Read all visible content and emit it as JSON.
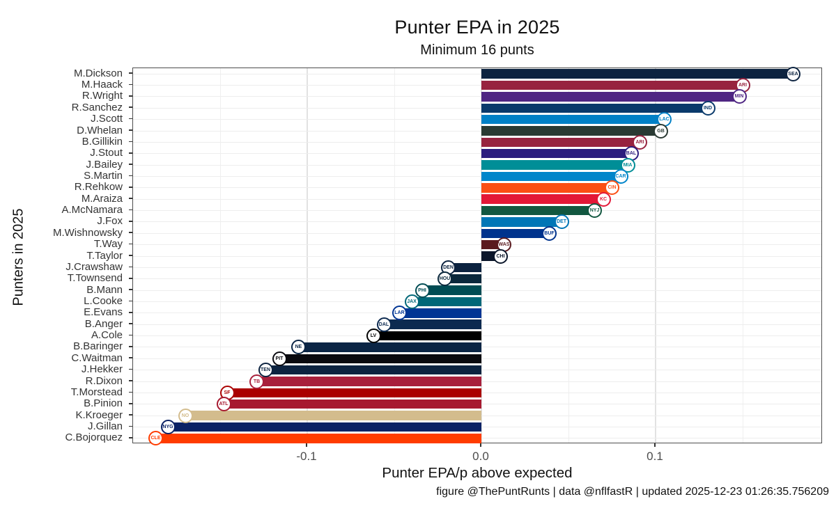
{
  "figure": {
    "title": "Punter EPA in 2025",
    "subtitle": "Minimum 16 punts",
    "xlabel": "Punter EPA/p above expected",
    "ylabel": "Punters in 2025",
    "caption": "figure @ThePuntRunts | data @nflfastR | updated 2025-12-23 01:26:35.756209"
  },
  "chart_data": {
    "type": "bar",
    "orientation": "horizontal",
    "title": "Punter EPA in 2025",
    "subtitle": "Minimum 16 punts",
    "xlabel": "Punter EPA/p above expected",
    "ylabel": "Punters in 2025",
    "xlim": [
      -0.2,
      0.196
    ],
    "x_tick_values": [
      -0.1,
      0.0,
      0.1
    ],
    "x_tick_labels": [
      "-0.1",
      "0.0",
      "0.1"
    ],
    "x_minor_values": [
      -0.15,
      -0.05,
      0.05,
      0.15
    ],
    "grid": true,
    "legend": "none",
    "punters": [
      {
        "name": "M.Dickson",
        "team": "SEA",
        "logo": "seahawks-logo",
        "color": "#0C2340",
        "value": 0.179
      },
      {
        "name": "M.Haack",
        "team": "ARI",
        "logo": "cardinals-logo",
        "color": "#97233F",
        "value": 0.15
      },
      {
        "name": "R.Wright",
        "team": "MIN",
        "logo": "vikings-logo",
        "color": "#4F2683",
        "value": 0.148
      },
      {
        "name": "R.Sanchez",
        "team": "IND",
        "logo": "colts-logo",
        "color": "#0A3A6B",
        "value": 0.13
      },
      {
        "name": "J.Scott",
        "team": "LAC",
        "logo": "chargers-logo",
        "color": "#0080C6",
        "value": 0.105
      },
      {
        "name": "D.Whelan",
        "team": "GB",
        "logo": "packers-logo",
        "color": "#2A3A33",
        "value": 0.103
      },
      {
        "name": "B.Gillikin",
        "team": "ARI",
        "logo": "cardinals-logo",
        "color": "#97233F",
        "value": 0.091
      },
      {
        "name": "J.Stout",
        "team": "BAL",
        "logo": "ravens-logo",
        "color": "#2B1D7E",
        "value": 0.086
      },
      {
        "name": "J.Bailey",
        "team": "MIA",
        "logo": "dolphins-logo",
        "color": "#008E97",
        "value": 0.084
      },
      {
        "name": "S.Martin",
        "team": "CAR",
        "logo": "panthers-logo",
        "color": "#0085CA",
        "value": 0.08
      },
      {
        "name": "R.Rehkow",
        "team": "CIN",
        "logo": "bengals-logo",
        "color": "#FB4F14",
        "value": 0.075
      },
      {
        "name": "M.Araiza",
        "team": "KC",
        "logo": "chiefs-logo",
        "color": "#E31837",
        "value": 0.07
      },
      {
        "name": "A.McNamara",
        "team": "NYJ",
        "logo": "jets-logo",
        "color": "#125740",
        "value": 0.065
      },
      {
        "name": "J.Fox",
        "team": "DET",
        "logo": "lions-logo",
        "color": "#0076B6",
        "value": 0.046
      },
      {
        "name": "M.Wishnowsky",
        "team": "BUF",
        "logo": "bills-logo",
        "color": "#00338D",
        "value": 0.039
      },
      {
        "name": "T.Way",
        "team": "WAS",
        "logo": "commanders-logo",
        "color": "#5A1A1E",
        "value": 0.013
      },
      {
        "name": "T.Taylor",
        "team": "CHI",
        "logo": "bears-logo",
        "color": "#0B162A",
        "value": 0.011
      },
      {
        "name": "J.Crawshaw",
        "team": "DEN",
        "logo": "broncos-logo",
        "color": "#0C2340",
        "value": -0.019
      },
      {
        "name": "T.Townsend",
        "team": "HOU",
        "logo": "texans-logo",
        "color": "#0A283C",
        "value": -0.021
      },
      {
        "name": "B.Mann",
        "team": "PHI",
        "logo": "eagles-logo",
        "color": "#004C54",
        "value": -0.034
      },
      {
        "name": "L.Cooke",
        "team": "JAX",
        "logo": "jaguars-logo",
        "color": "#006778",
        "value": -0.04
      },
      {
        "name": "E.Evans",
        "team": "LAR",
        "logo": "rams-logo",
        "color": "#003594",
        "value": -0.047
      },
      {
        "name": "B.Anger",
        "team": "DAL",
        "logo": "cowboys-logo",
        "color": "#0C2A50",
        "value": -0.056
      },
      {
        "name": "A.Cole",
        "team": "LV",
        "logo": "raiders-logo",
        "color": "#000000",
        "value": -0.062
      },
      {
        "name": "B.Baringer",
        "team": "NE",
        "logo": "patriots-logo",
        "color": "#0B2545",
        "value": -0.105
      },
      {
        "name": "C.Waitman",
        "team": "PIT",
        "logo": "steelers-logo",
        "color": "#0A0A0F",
        "value": -0.116
      },
      {
        "name": "J.Hekker",
        "team": "TEN",
        "logo": "titans-logo",
        "color": "#0C2340",
        "value": -0.124
      },
      {
        "name": "R.Dixon",
        "team": "TB",
        "logo": "buccaneers-logo",
        "color": "#A8203C",
        "value": -0.129
      },
      {
        "name": "T.Morstead",
        "team": "SF",
        "logo": "49ers-logo",
        "color": "#AA0000",
        "value": -0.146
      },
      {
        "name": "B.Pinion",
        "team": "ATL",
        "logo": "falcons-logo",
        "color": "#A71930",
        "value": -0.148
      },
      {
        "name": "K.Kroeger",
        "team": "NO",
        "logo": "saints-logo",
        "color": "#D3BC8D",
        "value": -0.17
      },
      {
        "name": "J.Gillan",
        "team": "NYG",
        "logo": "giants-logo",
        "color": "#0B2265",
        "value": -0.18
      },
      {
        "name": "C.Bojorquez",
        "team": "CLE",
        "logo": "browns-logo",
        "color": "#FF3C00",
        "value": -0.187
      }
    ]
  }
}
